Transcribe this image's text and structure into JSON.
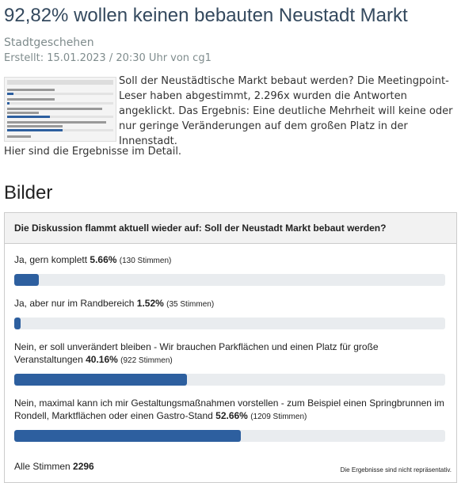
{
  "header": {
    "title": "92,82% wollen keinen bebauten Neustadt Markt",
    "category": "Stadtgeschehen",
    "meta": "Erstellt: 15.01.2023 / 20:30 Uhr von cg1"
  },
  "article": {
    "intro": "Soll der Neustädtische Markt bebaut werden? Die Meetingpoint-Leser haben abgestimmt, 2.296x wurden die Antworten angeklickt. Das Ergebnis: Eine deutliche Mehrheit will keine oder nur geringe Veränderungen auf dem großen Platz in der Innenstadt.",
    "detail": "Hier sind die Ergebnisse im Detail."
  },
  "section_title": "Bilder",
  "poll": {
    "question": "Die Diskussion flammt aktuell wieder auf: Soll der Neustadt Markt bebaut werden?",
    "options": [
      {
        "label": "Ja, gern komplett",
        "percent": 5.66,
        "percent_label": "5.66%",
        "votes": "(130 Stimmen)"
      },
      {
        "label": "Ja, aber nur im Randbereich",
        "percent": 1.52,
        "percent_label": "1.52%",
        "votes": "(35 Stimmen)"
      },
      {
        "label": "Nein, er soll unverändert bleiben - Wir brauchen Parkflächen und einen Platz für große Veranstaltungen",
        "percent": 40.16,
        "percent_label": "40.16%",
        "votes": "(922 Stimmen)"
      },
      {
        "label": "Nein, maximal kann ich mir Gestaltungsmaßnahmen vorstellen - zum Beispiel einen Springbrunnen im Rondell, Marktflächen oder einen Gastro-Stand",
        "percent": 52.66,
        "percent_label": "52.66%",
        "votes": "(1209 Stimmen)"
      }
    ],
    "total_label": "Alle Stimmen",
    "total": "2296",
    "footnote": "Die Ergebnisse sind nicht repräsentativ."
  }
}
